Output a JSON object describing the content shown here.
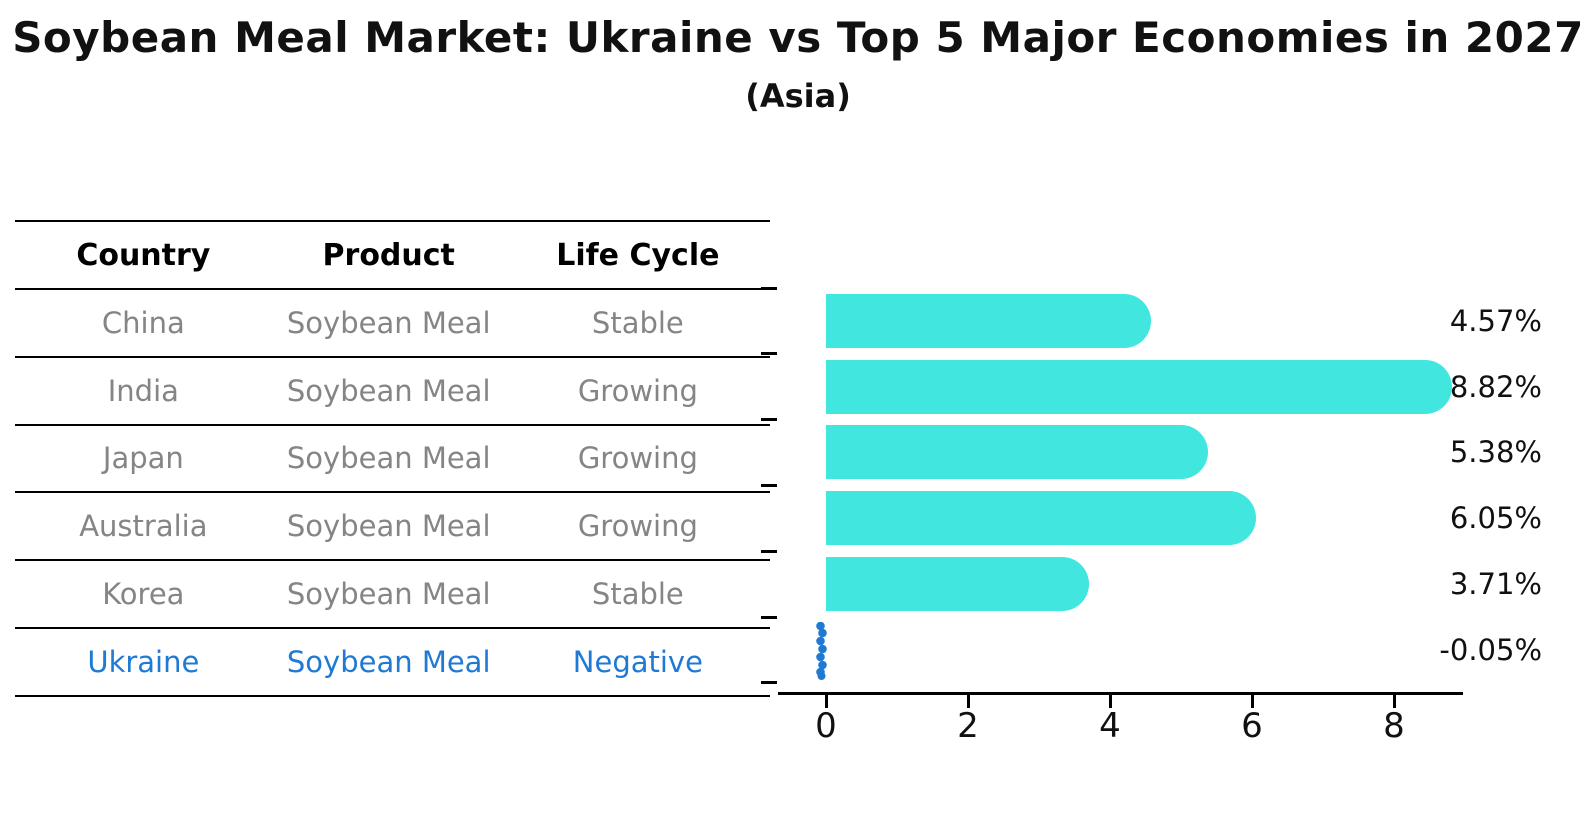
{
  "title": "Soybean Meal Market: Ukraine vs Top 5 Major Economies in 2027",
  "subtitle": "(Asia)",
  "table": {
    "headers": [
      "Country",
      "Product",
      "Life Cycle"
    ],
    "rows": [
      {
        "country": "China",
        "product": "Soybean Meal",
        "life_cycle": "Stable",
        "highlight": false
      },
      {
        "country": "India",
        "product": "Soybean Meal",
        "life_cycle": "Growing",
        "highlight": false
      },
      {
        "country": "Japan",
        "product": "Soybean Meal",
        "life_cycle": "Growing",
        "highlight": false
      },
      {
        "country": "Australia",
        "product": "Soybean Meal",
        "life_cycle": "Growing",
        "highlight": false
      },
      {
        "country": "Korea",
        "product": "Soybean Meal",
        "life_cycle": "Stable",
        "highlight": false
      },
      {
        "country": "Ukraine",
        "product": "Soybean Meal",
        "life_cycle": "Negative",
        "highlight": true
      }
    ]
  },
  "chart_data": {
    "type": "bar",
    "orientation": "horizontal",
    "title": "Soybean Meal Market: Ukraine vs Top 5 Major Economies in 2027",
    "subtitle": "(Asia)",
    "categories": [
      "China",
      "India",
      "Japan",
      "Australia",
      "Korea",
      "Ukraine"
    ],
    "values": [
      4.57,
      8.82,
      5.38,
      6.05,
      3.71,
      -0.05
    ],
    "value_labels": [
      "4.57%",
      "8.82%",
      "5.38%",
      "6.05%",
      "3.71%",
      "-0.05%"
    ],
    "unit": "percent",
    "xticks": [
      0,
      2,
      4,
      6,
      8
    ],
    "xtick_labels": [
      "0",
      "2",
      "4",
      "6",
      "8"
    ],
    "xlim": [
      -0.7,
      9.2
    ],
    "grid": false,
    "legend": false,
    "bar_color": "#41E6DF",
    "highlight_color": "#1F7AD4"
  },
  "colors": {
    "bar_cyan": "#41E6DF",
    "highlight_blue": "#1F7AD4",
    "table_text_gray": "#858585",
    "text_black": "#111111"
  }
}
